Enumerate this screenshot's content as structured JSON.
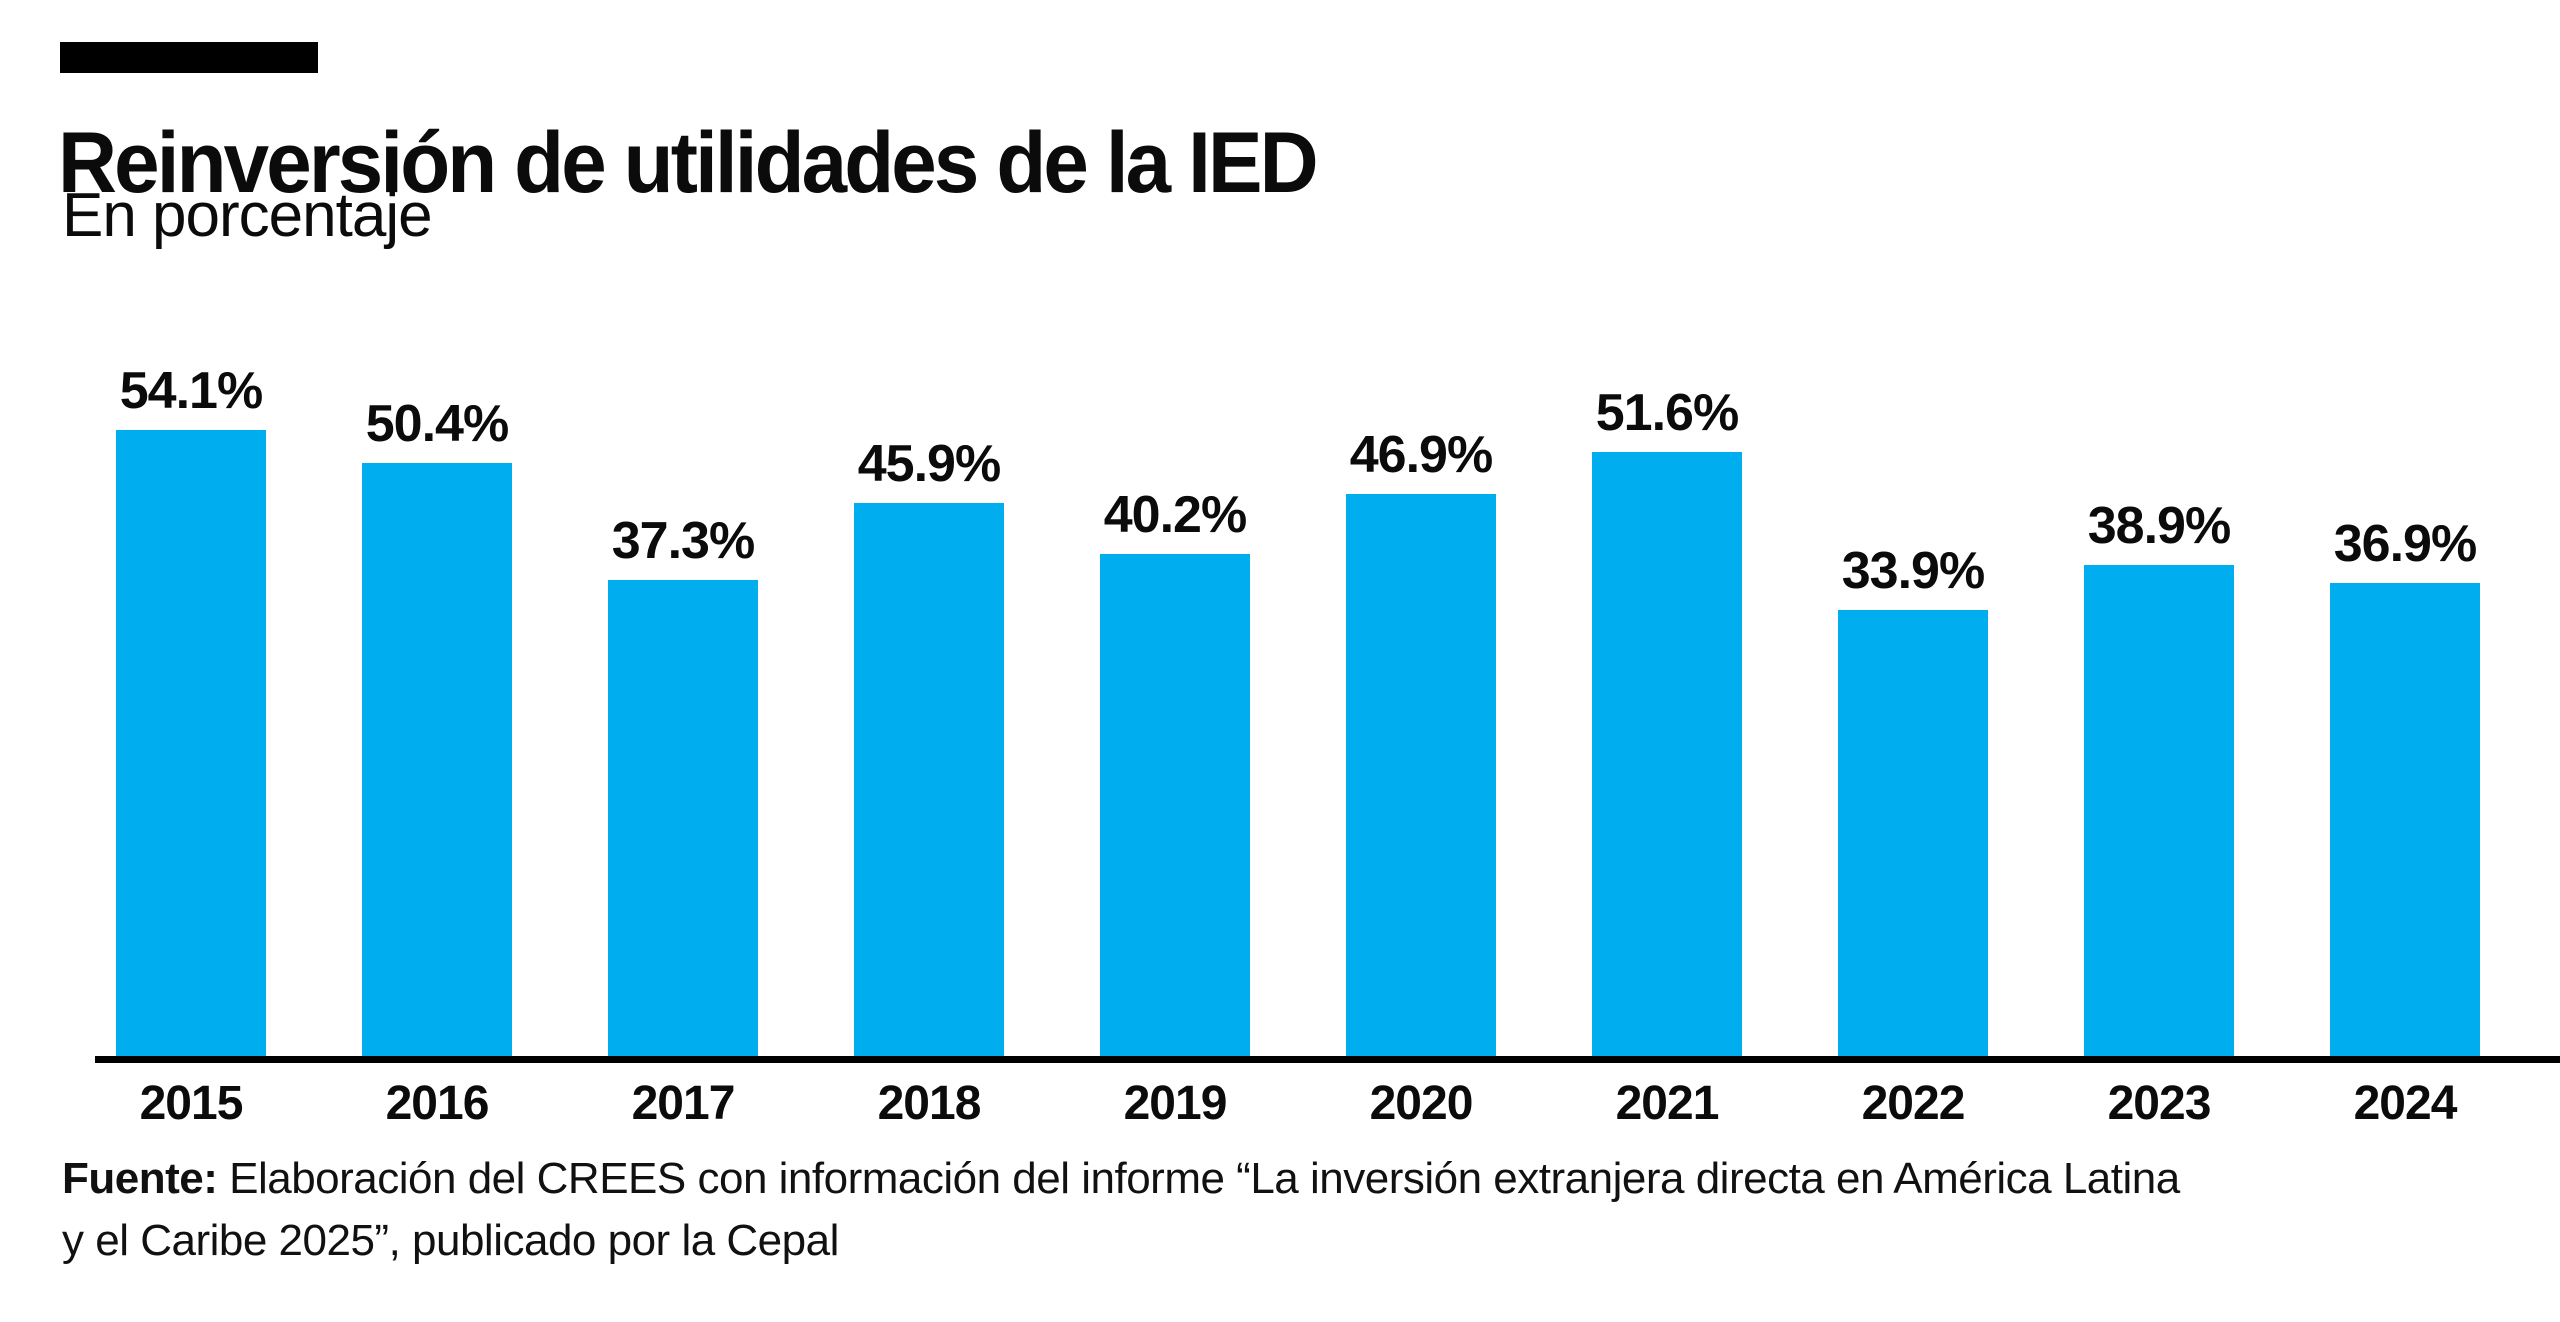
{
  "header": {
    "title": "Reinversión de utilidades de la IED",
    "subtitle": "En porcentaje",
    "tag_color": "#000000"
  },
  "chart_data": {
    "type": "bar",
    "title": "Reinversión de utilidades de la IED",
    "subtitle": "En porcentaje",
    "categories": [
      "2015",
      "2016",
      "2017",
      "2018",
      "2019",
      "2020",
      "2021",
      "2022",
      "2023",
      "2024"
    ],
    "values": [
      54.1,
      50.4,
      37.3,
      45.9,
      40.2,
      46.9,
      51.6,
      33.9,
      38.9,
      36.9
    ],
    "value_labels": [
      "54.1%",
      "50.4%",
      "37.3%",
      "45.9%",
      "40.2%",
      "46.9%",
      "51.6%",
      "33.9%",
      "38.9%",
      "36.9%"
    ],
    "xlabel": "",
    "ylabel": "",
    "unit": "%",
    "bar_color": "#00AEEF",
    "axis_color": "#000000",
    "grid": false,
    "legend": false,
    "data_labels": "above-bars"
  },
  "source": {
    "label": "Fuente:",
    "line1_rest": " Elaboración del CREES con información del informe “La inversión extranjera directa en América Latina",
    "line2": "y el Caribe 2025”, publicado por la Cepal"
  }
}
